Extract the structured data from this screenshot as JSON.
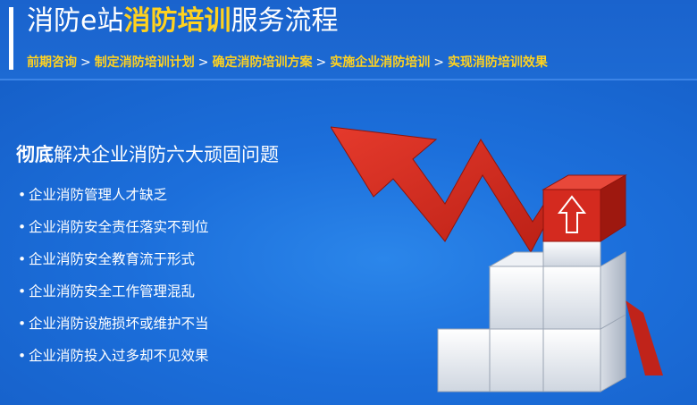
{
  "header": {
    "title_prefix": "消防e站",
    "title_highlight": "消防培训",
    "title_suffix": "服务流程",
    "steps": [
      "前期咨询",
      "制定消防培训计划",
      "确定消防培训方案",
      "实施企业消防培训",
      "实现消防培训效果"
    ],
    "separator": ">"
  },
  "main": {
    "headline_bold": "彻底",
    "headline_rest": "解决企业消防六大顽固问题",
    "bullet": "•",
    "problems": [
      "企业消防管理人才缺乏",
      "企业消防安全责任落实不到位",
      "企业消防安全教育流于形式",
      "企业消防安全工作管理混乱",
      "企业消防设施损坏或维护不当",
      "企业消防投入过多却不见效果"
    ]
  },
  "colors": {
    "background": "#1f6fd6",
    "highlight": "#ffd21f",
    "arrow": "#d42a1f",
    "cube": "#f2f4f7"
  },
  "icons": [
    "up-arrow-icon",
    "rising-trend-arrow"
  ]
}
